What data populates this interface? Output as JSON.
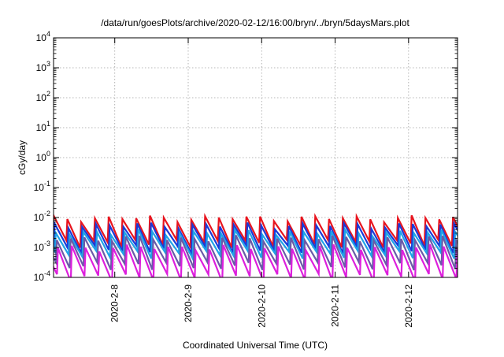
{
  "chart_data": {
    "type": "line",
    "title": "/data/run/goesPlots/archive/2020-02-12/16:00/bryn/../bryn/5daysMars.plot",
    "xlabel": "Coordinated Universal Time (UTC)",
    "ylabel": "cGy/day",
    "yscale": "log",
    "ylim": [
      "1e-4",
      "1e4"
    ],
    "xlim": [
      "2020-02-07 04:00",
      "2020-02-12 16:00"
    ],
    "grid": true,
    "legend": "none",
    "ytick_labels": [
      {
        "base": "10",
        "exp": "-4"
      },
      {
        "base": "10",
        "exp": "-3"
      },
      {
        "base": "10",
        "exp": "-2"
      },
      {
        "base": "10",
        "exp": "-1"
      },
      {
        "base": "10",
        "exp": "0"
      },
      {
        "base": "10",
        "exp": "1"
      },
      {
        "base": "10",
        "exp": "2"
      },
      {
        "base": "10",
        "exp": "3"
      },
      {
        "base": "10",
        "exp": "4"
      }
    ],
    "xtick_labels": [
      "2020-2-8",
      "2020-2-9",
      "2020-2-10",
      "2020-2-11",
      "2020-2-12"
    ],
    "cycle_hours": 4.5,
    "series": [
      {
        "color": "#e8141e",
        "peak": 0.0095,
        "trough": 0.0014
      },
      {
        "color": "#1a3ad8",
        "peak": 0.0055,
        "trough": 0.0009
      },
      {
        "color": "#1fa3e8",
        "peak": 0.0032,
        "trough": 0.0006
      },
      {
        "color": "#6a5aa8",
        "peak": 0.002,
        "trough": 0.00025
      },
      {
        "color": "#dd1fdd",
        "peak": 0.001,
        "trough": 0.0001
      }
    ]
  }
}
